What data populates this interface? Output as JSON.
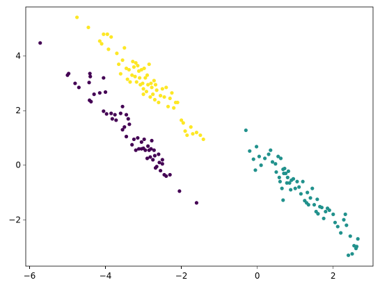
{
  "chart_data": {
    "type": "scatter",
    "title": "",
    "xlabel": "",
    "ylabel": "",
    "grid": false,
    "legend": "none",
    "xlim": [
      -6.1,
      3.05
    ],
    "ylim": [
      -3.7,
      5.8
    ],
    "xticks": [
      -6,
      -4,
      -2,
      0,
      2
    ],
    "yticks": [
      -2,
      0,
      2,
      4
    ],
    "xtick_labels": [
      "−6",
      "−4",
      "−2",
      "0",
      "2"
    ],
    "ytick_labels": [
      "−2",
      "0",
      "2",
      "4"
    ],
    "series": [
      {
        "color": "#440154",
        "points": [
          [
            -5.72,
            4.48
          ],
          [
            -5.0,
            3.3
          ],
          [
            -4.97,
            3.36
          ],
          [
            -4.8,
            3.0
          ],
          [
            -4.7,
            2.85
          ],
          [
            -4.43,
            3.03
          ],
          [
            -4.41,
            3.36
          ],
          [
            -4.4,
            3.25
          ],
          [
            -4.42,
            2.38
          ],
          [
            -4.38,
            2.33
          ],
          [
            -4.3,
            2.6
          ],
          [
            -4.15,
            2.65
          ],
          [
            -4.05,
            3.2
          ],
          [
            -4.0,
            2.68
          ],
          [
            -4.05,
            1.98
          ],
          [
            -3.97,
            1.88
          ],
          [
            -3.85,
            1.9
          ],
          [
            -3.82,
            1.7
          ],
          [
            -3.75,
            1.85
          ],
          [
            -3.72,
            1.65
          ],
          [
            -3.6,
            1.9
          ],
          [
            -3.55,
            2.15
          ],
          [
            -3.55,
            1.3
          ],
          [
            -3.5,
            1.4
          ],
          [
            -3.45,
            1.85
          ],
          [
            -3.45,
            1.05
          ],
          [
            -3.4,
            1.7
          ],
          [
            -3.37,
            1.5
          ],
          [
            -3.3,
            0.75
          ],
          [
            -3.25,
            0.95
          ],
          [
            -3.2,
            0.55
          ],
          [
            -3.15,
            1.0
          ],
          [
            -3.12,
            0.6
          ],
          [
            -3.05,
            0.85
          ],
          [
            -3.05,
            0.6
          ],
          [
            -3.0,
            0.62
          ],
          [
            -2.98,
            0.95
          ],
          [
            -2.95,
            0.55
          ],
          [
            -2.9,
            0.25
          ],
          [
            -2.88,
            0.7
          ],
          [
            -2.85,
            0.55
          ],
          [
            -2.82,
            0.3
          ],
          [
            -2.8,
            0.6
          ],
          [
            -2.78,
            0.9
          ],
          [
            -2.75,
            0.2
          ],
          [
            -2.72,
            0.55
          ],
          [
            -2.7,
            0.35
          ],
          [
            -2.68,
            -0.1
          ],
          [
            -2.65,
            -0.05
          ],
          [
            -2.6,
            0.4
          ],
          [
            -2.58,
            0.1
          ],
          [
            -2.55,
            -0.2
          ],
          [
            -2.5,
            0.2
          ],
          [
            -2.5,
            0.05
          ],
          [
            -2.45,
            -0.35
          ],
          [
            -2.4,
            -0.4
          ],
          [
            -2.3,
            -0.35
          ],
          [
            -2.05,
            -0.95
          ],
          [
            -1.6,
            -1.38
          ]
        ]
      },
      {
        "color": "#21918c",
        "points": [
          [
            -0.3,
            1.28
          ],
          [
            -0.2,
            0.52
          ],
          [
            -0.1,
            0.22
          ],
          [
            -0.05,
            -0.18
          ],
          [
            -0.02,
            0.68
          ],
          [
            0.05,
            0.32
          ],
          [
            0.1,
            0.0
          ],
          [
            0.2,
            0.25
          ],
          [
            0.3,
            0.4
          ],
          [
            0.35,
            0.55
          ],
          [
            0.4,
            0.12
          ],
          [
            0.48,
            0.05
          ],
          [
            0.5,
            -0.25
          ],
          [
            0.55,
            0.32
          ],
          [
            0.58,
            -0.45
          ],
          [
            0.6,
            -0.6
          ],
          [
            0.62,
            0.25
          ],
          [
            0.65,
            -0.85
          ],
          [
            0.68,
            -0.15
          ],
          [
            0.7,
            -0.3
          ],
          [
            0.72,
            -0.12
          ],
          [
            0.75,
            -0.3
          ],
          [
            0.78,
            -0.65
          ],
          [
            0.8,
            -0.45
          ],
          [
            0.82,
            -0.22
          ],
          [
            0.85,
            -0.65
          ],
          [
            0.88,
            -0.9
          ],
          [
            0.9,
            -0.55
          ],
          [
            0.95,
            -0.5
          ],
          [
            1.0,
            -0.85
          ],
          [
            1.05,
            -0.6
          ],
          [
            1.1,
            -0.8
          ],
          [
            1.15,
            -1.05
          ],
          [
            1.2,
            -0.6
          ],
          [
            1.25,
            -1.3
          ],
          [
            1.3,
            -1.38
          ],
          [
            1.32,
            -1.0
          ],
          [
            1.35,
            -1.45
          ],
          [
            1.4,
            -1.2
          ],
          [
            1.45,
            -0.85
          ],
          [
            1.5,
            -1.45
          ],
          [
            1.55,
            -1.7
          ],
          [
            1.58,
            -1.25
          ],
          [
            1.6,
            -1.78
          ],
          [
            1.65,
            -1.52
          ],
          [
            1.7,
            -1.55
          ],
          [
            1.75,
            -1.95
          ],
          [
            1.8,
            -1.7
          ],
          [
            1.85,
            -1.58
          ],
          [
            1.9,
            -1.65
          ],
          [
            2.0,
            -1.8
          ],
          [
            2.05,
            -2.1
          ],
          [
            2.12,
            -2.25
          ],
          [
            2.2,
            -2.48
          ],
          [
            2.28,
            -2.0
          ],
          [
            2.32,
            -1.8
          ],
          [
            2.35,
            -2.2
          ],
          [
            2.4,
            -3.3
          ],
          [
            2.45,
            -2.6
          ],
          [
            2.5,
            -3.25
          ],
          [
            2.55,
            -2.95
          ],
          [
            2.6,
            -3.05
          ],
          [
            2.62,
            -2.98
          ],
          [
            2.65,
            -2.7
          ],
          [
            0.68,
            -1.28
          ]
        ]
      },
      {
        "color": "#fde725",
        "points": [
          [
            -4.75,
            5.42
          ],
          [
            -4.45,
            5.05
          ],
          [
            -4.15,
            4.55
          ],
          [
            -4.1,
            4.45
          ],
          [
            -4.05,
            4.8
          ],
          [
            -3.95,
            4.8
          ],
          [
            -3.92,
            4.25
          ],
          [
            -3.85,
            4.7
          ],
          [
            -3.7,
            4.1
          ],
          [
            -3.65,
            3.7
          ],
          [
            -3.6,
            3.35
          ],
          [
            -3.55,
            3.85
          ],
          [
            -3.5,
            4.3
          ],
          [
            -3.45,
            3.55
          ],
          [
            -3.42,
            3.15
          ],
          [
            -3.38,
            3.5
          ],
          [
            -3.35,
            3.05
          ],
          [
            -3.3,
            3.3
          ],
          [
            -3.28,
            3.8
          ],
          [
            -3.25,
            3.6
          ],
          [
            -3.22,
            3.25
          ],
          [
            -3.2,
            3.75
          ],
          [
            -3.18,
            3.05
          ],
          [
            -3.15,
            3.65
          ],
          [
            -3.12,
            3.45
          ],
          [
            -3.1,
            3.2
          ],
          [
            -3.08,
            2.95
          ],
          [
            -3.05,
            3.5
          ],
          [
            -3.02,
            3.0
          ],
          [
            -3.0,
            2.8
          ],
          [
            -3.0,
            2.6
          ],
          [
            -2.98,
            3.55
          ],
          [
            -2.95,
            3.2
          ],
          [
            -2.92,
            2.7
          ],
          [
            -2.9,
            3.3
          ],
          [
            -2.88,
            2.95
          ],
          [
            -2.85,
            3.7
          ],
          [
            -2.82,
            2.5
          ],
          [
            -2.8,
            3.0
          ],
          [
            -2.78,
            2.85
          ],
          [
            -2.75,
            2.6
          ],
          [
            -2.72,
            3.1
          ],
          [
            -2.7,
            2.4
          ],
          [
            -2.68,
            2.95
          ],
          [
            -2.65,
            2.75
          ],
          [
            -2.6,
            2.3
          ],
          [
            -2.55,
            2.55
          ],
          [
            -2.5,
            2.8
          ],
          [
            -2.45,
            2.5
          ],
          [
            -2.4,
            2.85
          ],
          [
            -2.35,
            2.15
          ],
          [
            -2.3,
            2.45
          ],
          [
            -2.25,
            2.65
          ],
          [
            -2.2,
            2.1
          ],
          [
            -2.15,
            2.3
          ],
          [
            -2.1,
            2.3
          ],
          [
            -2.0,
            1.65
          ],
          [
            -1.95,
            1.55
          ],
          [
            -1.9,
            1.25
          ],
          [
            -1.85,
            1.1
          ],
          [
            -1.75,
            1.4
          ],
          [
            -1.7,
            1.15
          ],
          [
            -1.6,
            1.2
          ],
          [
            -1.5,
            1.1
          ],
          [
            -1.42,
            0.95
          ]
        ]
      }
    ]
  }
}
